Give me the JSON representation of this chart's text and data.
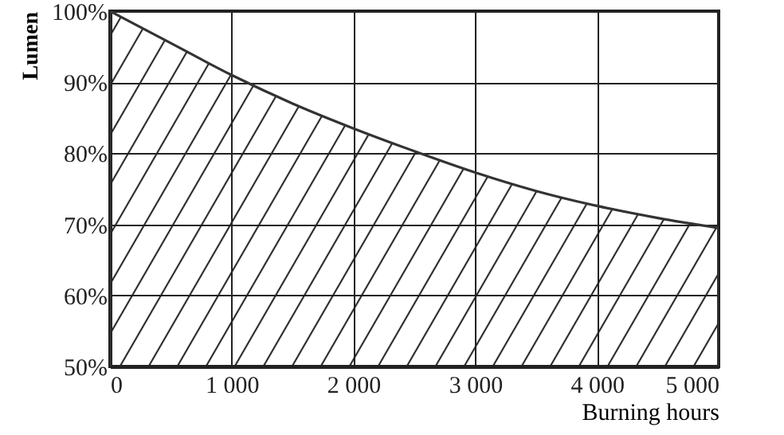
{
  "chart_data": {
    "type": "area",
    "xlabel": "Burning hours",
    "ylabel": "Lumen",
    "x": [
      0,
      500,
      1000,
      1500,
      2000,
      2500,
      3000,
      3500,
      4000,
      4500,
      5000
    ],
    "series": [
      {
        "color": "#333333",
        "values": [
          100,
          95.5,
          91,
          87,
          83.5,
          80.3,
          77.3,
          74.7,
          72.6,
          70.9,
          69.5
        ]
      }
    ],
    "xlim": [
      0,
      5000
    ],
    "xticks": [
      0,
      {
        "value": 1000,
        "label": "1 000"
      },
      {
        "value": 2000,
        "label": "2 000"
      },
      {
        "value": 3000,
        "label": "3 000"
      },
      {
        "value": 4000,
        "label": "4 000"
      },
      {
        "value": 5000,
        "label": "5 000"
      }
    ],
    "ylim": [
      50,
      100
    ],
    "yticks": [
      {
        "value": 50,
        "label": "50%"
      },
      {
        "value": 60,
        "label": "60%"
      },
      {
        "value": 70,
        "label": "70%"
      },
      {
        "value": 80,
        "label": "80%"
      },
      {
        "value": 90,
        "label": "90%"
      },
      {
        "value": 100,
        "label": "100%"
      }
    ],
    "grid": true
  }
}
